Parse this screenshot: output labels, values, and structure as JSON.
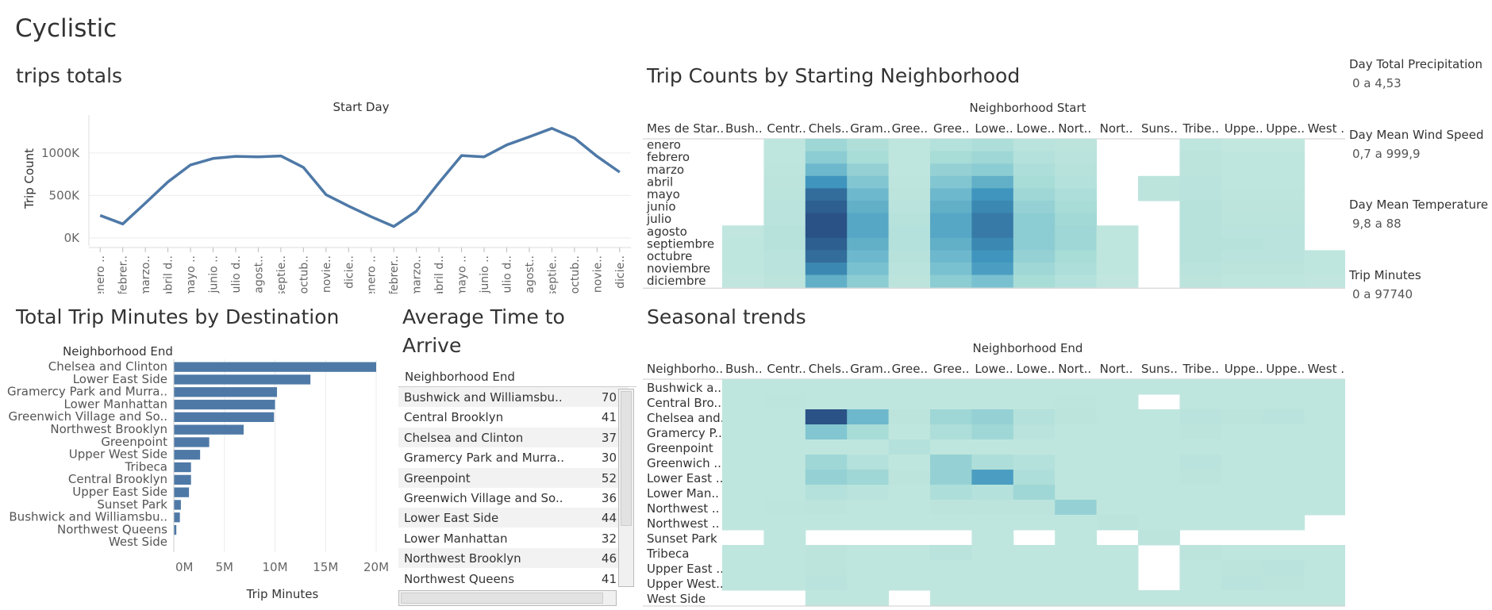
{
  "dashboard": {
    "title": "Cyclistic"
  },
  "sections": {
    "trips_totals": "trips totals",
    "heatmap_start": "Trip Counts by Starting Neighborhood",
    "destination": "Total Trip Minutes by Destination",
    "avg_time": "Average Time to Arrive",
    "seasonal": "Seasonal trends"
  },
  "legends": [
    {
      "title": "Day Total Precipitation",
      "value": "0 a 4,53"
    },
    {
      "title": "Day Mean Wind Speed",
      "value": "0,7 a 999,9"
    },
    {
      "title": "Day Mean Temperature",
      "value": "9,8 a 88"
    },
    {
      "title": "Trip Minutes",
      "value": "0 a 97740"
    }
  ],
  "colors": {
    "bar": "#4e79a7",
    "line": "#4e79a7",
    "heat_low": "#c5e8e0",
    "heat_high": "#2a5286"
  },
  "chart_data": [
    {
      "type": "line",
      "title": "Start Day",
      "ylabel": "Trip Count",
      "y_ticks": [
        "1000K",
        "500K",
        "0K"
      ],
      "ylim": [
        0,
        1400000
      ],
      "categories": [
        "enero ..",
        "febrer..",
        "marzo..",
        "abril d..",
        "mayo ..",
        "junio ..",
        "julio d..",
        "agost..",
        "septie..",
        "octub..",
        "novie..",
        "dicie..",
        "enero ..",
        "febrer..",
        "marzo..",
        "abril d..",
        "mayo ..",
        "junio ..",
        "julio d..",
        "agost..",
        "septie..",
        "octub..",
        "novie..",
        "dicie.."
      ],
      "values": [
        265000,
        165000,
        410000,
        660000,
        860000,
        935000,
        960000,
        955000,
        965000,
        830000,
        510000,
        375000,
        250000,
        135000,
        315000,
        650000,
        970000,
        955000,
        1095000,
        1190000,
        1290000,
        1175000,
        960000,
        775000
      ],
      "grid": true
    },
    {
      "type": "heatmap",
      "title": "Neighborhood Start",
      "row_header": "Mes de Star..",
      "columns": [
        "Bush..",
        "Centr..",
        "Chels..",
        "Gram..",
        "Gree..",
        "Gree..",
        "Lowe..",
        "Lowe..",
        "Nort..",
        "Nort..",
        "Suns..",
        "Tribe..",
        "Uppe..",
        "Uppe..",
        "West .."
      ],
      "rows": [
        "enero",
        "febrero",
        "marzo",
        "abril",
        "mayo",
        "junio",
        "julio",
        "agosto",
        "septiembre",
        "octubre",
        "noviembre",
        "diciembre"
      ],
      "values": [
        [
          null,
          0.05,
          0.3,
          0.18,
          0.05,
          0.15,
          0.2,
          0.1,
          0.08,
          null,
          null,
          0.06,
          0.03,
          0.03,
          null
        ],
        [
          null,
          0.05,
          0.4,
          0.25,
          0.05,
          0.25,
          0.3,
          0.15,
          0.1,
          null,
          null,
          0.08,
          0.05,
          0.05,
          null
        ],
        [
          null,
          0.07,
          0.55,
          0.35,
          0.06,
          0.35,
          0.4,
          0.2,
          0.12,
          null,
          null,
          0.08,
          0.06,
          0.06,
          null
        ],
        [
          null,
          0.08,
          0.75,
          0.45,
          0.07,
          0.45,
          0.6,
          0.25,
          0.15,
          null,
          0.08,
          0.1,
          0.06,
          0.06,
          null
        ],
        [
          null,
          0.09,
          0.9,
          0.55,
          0.08,
          0.55,
          0.75,
          0.3,
          0.2,
          null,
          0.08,
          0.1,
          0.07,
          0.07,
          null
        ],
        [
          null,
          0.1,
          0.95,
          0.6,
          0.1,
          0.6,
          0.8,
          0.35,
          0.25,
          null,
          null,
          0.12,
          0.08,
          0.08,
          null
        ],
        [
          null,
          0.1,
          1.0,
          0.65,
          0.12,
          0.65,
          0.85,
          0.4,
          0.28,
          null,
          null,
          0.12,
          0.09,
          0.09,
          null
        ],
        [
          0.04,
          0.12,
          1.0,
          0.65,
          0.15,
          0.65,
          0.85,
          0.4,
          0.3,
          0.05,
          null,
          0.12,
          0.1,
          0.1,
          null
        ],
        [
          0.05,
          0.12,
          0.95,
          0.6,
          0.15,
          0.6,
          0.8,
          0.4,
          0.3,
          0.05,
          null,
          0.12,
          0.12,
          0.1,
          null
        ],
        [
          0.05,
          0.1,
          0.9,
          0.55,
          0.12,
          0.55,
          0.75,
          0.35,
          0.25,
          0.05,
          null,
          0.12,
          0.1,
          0.1,
          0.05
        ],
        [
          0.05,
          0.1,
          0.8,
          0.5,
          0.1,
          0.5,
          0.7,
          0.3,
          0.2,
          0.05,
          null,
          0.1,
          0.08,
          0.08,
          0.05
        ],
        [
          0.04,
          0.08,
          0.6,
          0.4,
          0.08,
          0.4,
          0.5,
          0.25,
          0.15,
          0.04,
          null,
          0.08,
          0.06,
          0.06,
          0.04
        ]
      ]
    },
    {
      "type": "bar",
      "orientation": "horizontal",
      "row_header": "Neighborhood End",
      "xlabel": "Trip Minutes",
      "x_ticks": [
        "0M",
        "5M",
        "10M",
        "15M",
        "20M"
      ],
      "xlim": [
        0,
        20000000
      ],
      "categories": [
        "Chelsea and Clinton",
        "Lower East Side",
        "Gramercy Park and Murra..",
        "Lower Manhattan",
        "Greenwich Village and So..",
        "Northwest Brooklyn",
        "Greenpoint",
        "Upper West Side",
        "Tribeca",
        "Central Brooklyn",
        "Upper East Side",
        "Sunset Park",
        "Bushwick and Williamsbu..",
        "Northwest Queens",
        "West Side"
      ],
      "values": [
        20000000,
        13500000,
        10200000,
        10000000,
        9900000,
        6900000,
        3500000,
        2600000,
        1700000,
        1700000,
        1500000,
        700000,
        600000,
        250000,
        0
      ],
      "grid": true
    },
    {
      "type": "table",
      "header": "Neighborhood End",
      "rows": [
        {
          "name": "Bushwick and Williamsbu..",
          "value": "70"
        },
        {
          "name": "Central Brooklyn",
          "value": "41"
        },
        {
          "name": "Chelsea and Clinton",
          "value": "37"
        },
        {
          "name": "Gramercy Park and Murra..",
          "value": "30"
        },
        {
          "name": "Greenpoint",
          "value": "52"
        },
        {
          "name": "Greenwich Village and So..",
          "value": "36"
        },
        {
          "name": "Lower East Side",
          "value": "44"
        },
        {
          "name": "Lower Manhattan",
          "value": "32"
        },
        {
          "name": "Northwest Brooklyn",
          "value": "46"
        },
        {
          "name": "Northwest Queens",
          "value": "41"
        }
      ]
    },
    {
      "type": "heatmap",
      "title": "Neighborhood End",
      "row_header": "Neighborho..",
      "columns": [
        "Bush..",
        "Centr..",
        "Chels..",
        "Gram..",
        "Gree..",
        "Gree..",
        "Lowe..",
        "Lowe..",
        "Nort..",
        "Nort..",
        "Suns..",
        "Tribe..",
        "Uppe..",
        "Uppe..",
        "West .."
      ],
      "rows": [
        "Bushwick a..",
        "Central Bro..",
        "Chelsea and..",
        "Gramercy P..",
        "Greenpoint",
        "Greenwich ..",
        "Lower East ..",
        "Lower Man..",
        "Northwest ..",
        "Northwest ..",
        "Sunset Park",
        "Tribeca",
        "Upper East ..",
        "Upper West..",
        "West Side"
      ],
      "values": [
        [
          0.05,
          0.05,
          0.05,
          0.05,
          0.05,
          0.05,
          0.05,
          0.05,
          0.05,
          0.05,
          0.05,
          0.05,
          0.05,
          0.05,
          0.05
        ],
        [
          0.05,
          0.07,
          0.05,
          0.05,
          0.05,
          0.05,
          0.05,
          0.05,
          0.07,
          0.05,
          null,
          0.05,
          0.05,
          0.05,
          0.05
        ],
        [
          0.05,
          0.05,
          1.0,
          0.55,
          0.08,
          0.3,
          0.35,
          0.15,
          0.08,
          0.05,
          0.05,
          0.1,
          0.08,
          0.1,
          0.05
        ],
        [
          0.05,
          0.05,
          0.45,
          0.25,
          0.05,
          0.2,
          0.3,
          0.1,
          0.05,
          0.05,
          0.05,
          0.08,
          0.05,
          0.05,
          0.05
        ],
        [
          0.05,
          0.05,
          0.05,
          0.05,
          0.15,
          0.05,
          0.05,
          0.05,
          0.05,
          0.05,
          0.05,
          0.05,
          0.05,
          0.05,
          0.05
        ],
        [
          0.05,
          0.05,
          0.3,
          0.15,
          0.05,
          0.35,
          0.2,
          0.15,
          0.05,
          0.05,
          0.05,
          0.1,
          0.05,
          0.05,
          0.05
        ],
        [
          0.05,
          0.05,
          0.35,
          0.3,
          0.08,
          0.35,
          0.7,
          0.2,
          0.05,
          0.05,
          0.05,
          0.08,
          0.05,
          0.05,
          0.05
        ],
        [
          0.05,
          0.05,
          0.15,
          0.1,
          0.05,
          0.2,
          0.15,
          0.3,
          0.05,
          0.05,
          0.05,
          0.05,
          0.05,
          0.05,
          0.05
        ],
        [
          0.05,
          0.07,
          0.08,
          0.05,
          0.05,
          0.08,
          0.08,
          0.08,
          0.35,
          0.05,
          0.05,
          0.05,
          0.05,
          0.05,
          0.05
        ],
        [
          0.05,
          0.05,
          0.05,
          0.05,
          0.05,
          0.05,
          0.05,
          0.05,
          0.05,
          0.08,
          0.05,
          0.05,
          0.05,
          0.05,
          null
        ],
        [
          null,
          0.05,
          null,
          null,
          null,
          null,
          0.05,
          null,
          0.05,
          null,
          0.08,
          null,
          null,
          null,
          null
        ],
        [
          0.05,
          0.05,
          0.08,
          0.05,
          0.05,
          0.1,
          0.05,
          0.05,
          0.05,
          0.05,
          null,
          0.08,
          0.05,
          0.05,
          0.05
        ],
        [
          0.05,
          0.05,
          0.08,
          0.05,
          0.05,
          0.05,
          0.05,
          0.05,
          0.05,
          0.05,
          null,
          0.05,
          0.08,
          0.1,
          0.05
        ],
        [
          0.05,
          0.05,
          0.1,
          0.05,
          0.05,
          0.05,
          0.05,
          0.05,
          0.05,
          0.05,
          null,
          0.05,
          0.1,
          0.08,
          0.05
        ],
        [
          null,
          null,
          0.05,
          0.05,
          null,
          0.05,
          0.05,
          0.05,
          0.05,
          0.05,
          0.05,
          0.05,
          0.05,
          0.05,
          0.05
        ]
      ]
    }
  ]
}
